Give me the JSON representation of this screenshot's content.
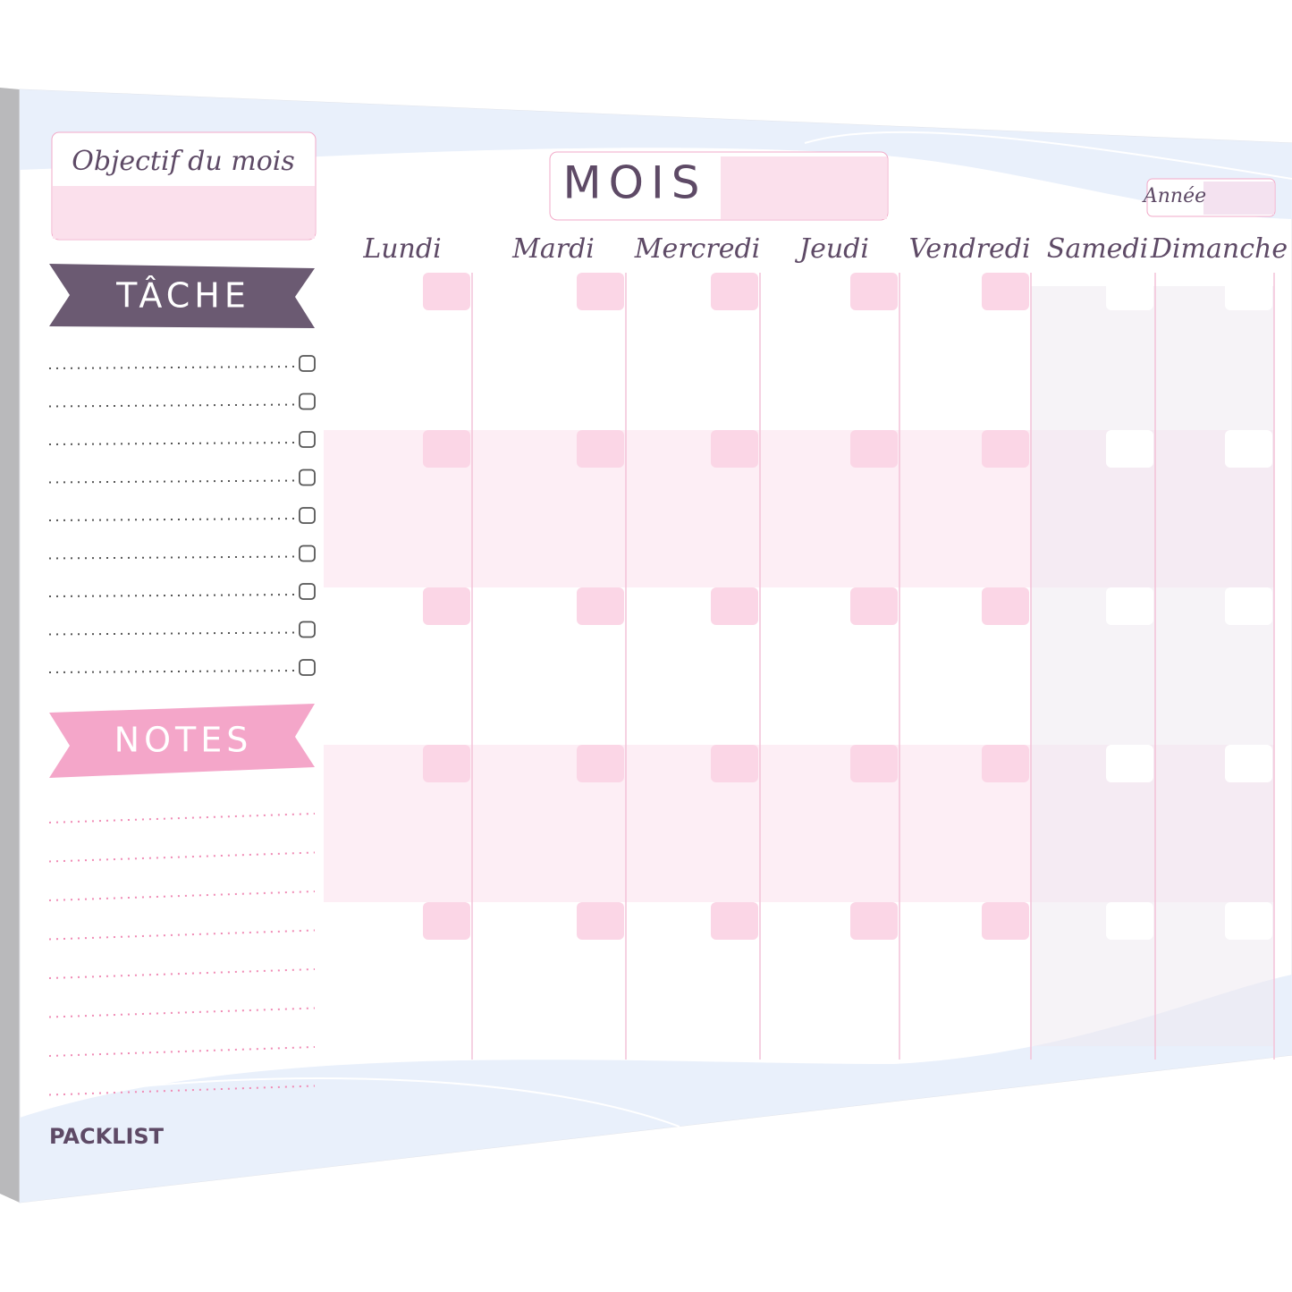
{
  "header": {
    "goal_label": "Objectif du mois",
    "month_label": "MOIS",
    "year_label": "Année"
  },
  "sidebar": {
    "tasks_label": "TÂCHE",
    "notes_label": "NOTES"
  },
  "calendar": {
    "days": [
      "Lundi",
      "Mardi",
      "Mercredi",
      "Jeudi",
      "Vendredi",
      "Samedi",
      "Dimanche"
    ]
  },
  "footer": {
    "brand": "PACKLIST"
  }
}
